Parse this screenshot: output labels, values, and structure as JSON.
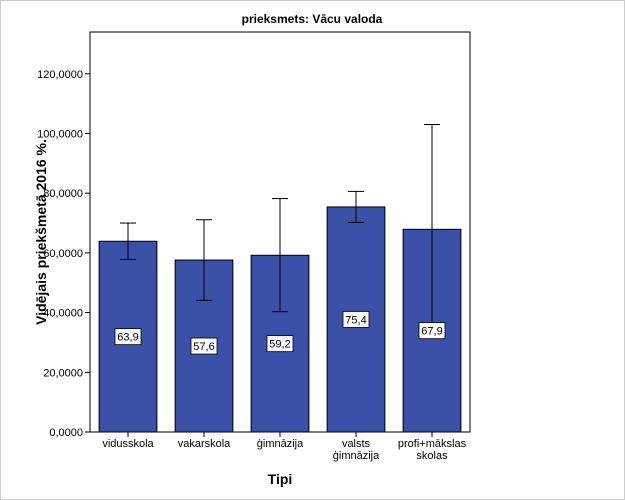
{
  "chart_data": {
    "type": "bar",
    "title": "prieksmets: Vācu valoda",
    "xlabel": "Tipi",
    "ylabel": "Vidējais priekšmetā 2016 %.",
    "categories": [
      [
        "vidusskola"
      ],
      [
        "vakarskola"
      ],
      [
        "ģimnāzija"
      ],
      [
        "valsts",
        "ģimnāzija"
      ],
      [
        "profi+mākslas",
        "skolas"
      ]
    ],
    "values": [
      63.9,
      57.6,
      59.2,
      75.4,
      67.9
    ],
    "value_labels": [
      "63,9",
      "57,6",
      "59,2",
      "75,4",
      "67,9"
    ],
    "error_low": [
      57.8,
      44.1,
      40.3,
      70.2,
      33.0
    ],
    "error_high": [
      70.0,
      71.1,
      78.2,
      80.6,
      103.0
    ],
    "ylim": [
      0,
      134
    ],
    "y_ticks": [
      0,
      20,
      40,
      60,
      80,
      100,
      120
    ],
    "y_tick_labels": [
      "0,0000",
      "20,0000",
      "40,0000",
      "60,0000",
      "80,0000",
      "100,0000",
      "120,0000"
    ],
    "grid": false,
    "colors": {
      "bar_fill": "#3b51a7",
      "bar_stroke": "#000000",
      "error_bar": "#000000"
    }
  }
}
